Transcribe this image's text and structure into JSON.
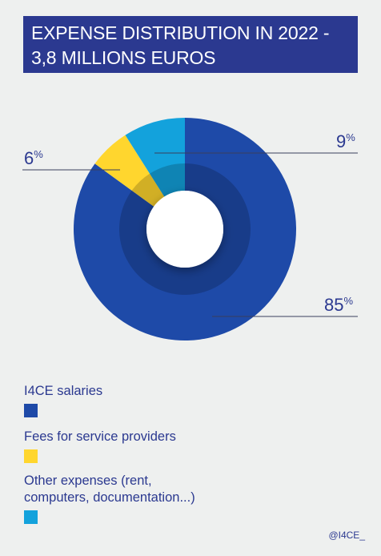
{
  "title_lines": [
    "EXPENSE DISTRIBUTION IN 2022 -",
    "3,8 MILLIONS EUROS"
  ],
  "credit": "@I4CE_",
  "colors": {
    "title_bg": "#2b3990",
    "text": "#2b3990",
    "salaries": "#1e4aa8",
    "fees": "#ffd62e",
    "other": "#13a2dc",
    "background": "#eef0ef"
  },
  "chart_data": {
    "type": "pie",
    "variant": "donut",
    "title": "EXPENSE DISTRIBUTION IN 2022 - 3,8 MILLIONS EUROS",
    "unit": "%",
    "slices": [
      {
        "label": "I4CE salaries",
        "value": 85,
        "display": "85",
        "color": "#1e4aa8"
      },
      {
        "label": "Fees for service providers",
        "value": 6,
        "display": "6",
        "color": "#ffd62e"
      },
      {
        "label": "Other expenses (rent, computers, documentation...)",
        "value": 9,
        "display": "9",
        "color": "#13a2dc"
      }
    ],
    "legend_position": "bottom"
  },
  "legend": [
    {
      "lines": [
        "I4CE salaries"
      ]
    },
    {
      "lines": [
        "Fees for service providers"
      ]
    },
    {
      "lines": [
        "Other expenses (rent,",
        "computers, documentation...)"
      ]
    }
  ]
}
